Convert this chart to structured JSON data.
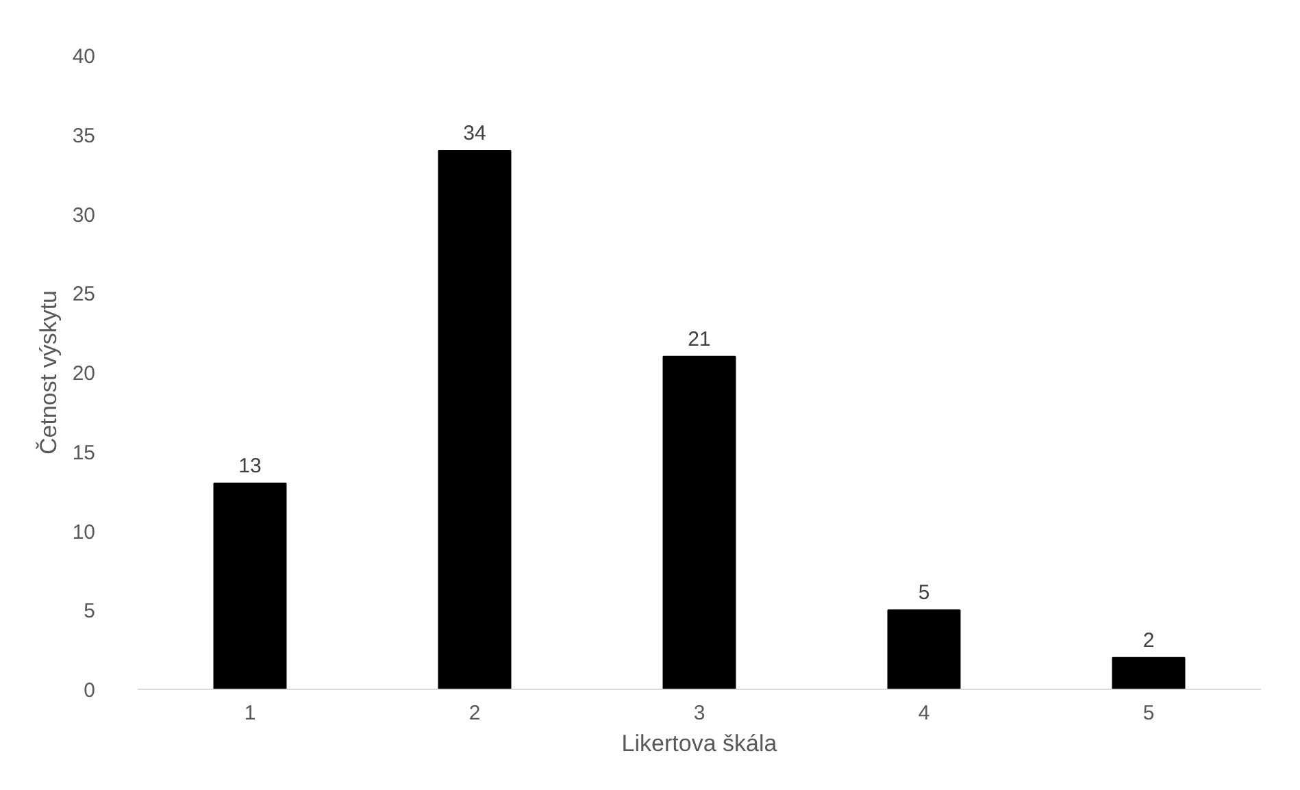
{
  "chart_data": {
    "type": "bar",
    "xlabel": "Likertova škála",
    "ylabel": "Četnost výskytu",
    "categories": [
      "1",
      "2",
      "3",
      "4",
      "5"
    ],
    "values": [
      13,
      34,
      21,
      5,
      2
    ],
    "color": "#000000",
    "ylim": [
      0,
      40
    ],
    "yticks": [
      0,
      5,
      10,
      15,
      20,
      25,
      30,
      35,
      40
    ],
    "data_labels": true,
    "grid": false
  }
}
